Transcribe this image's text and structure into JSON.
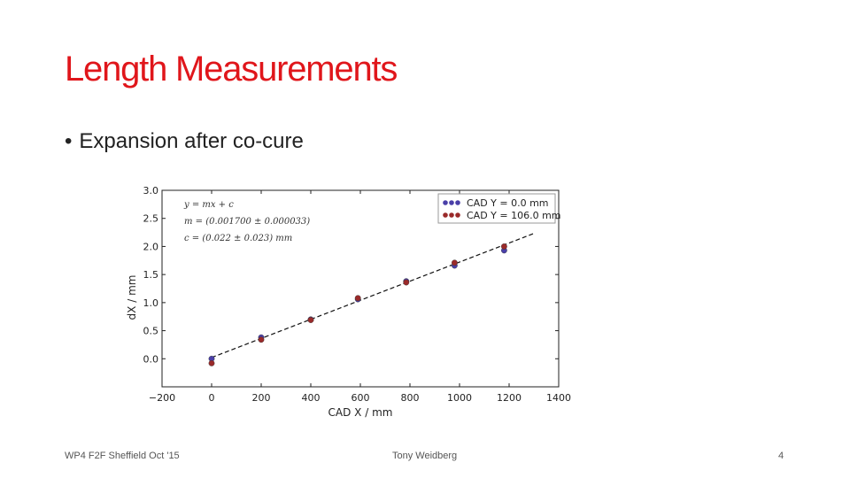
{
  "slide": {
    "title": "Length Measurements",
    "bullet": "Expansion after co-cure",
    "bullet_symbol": "•",
    "footer_left": "WP4 F2F Sheffield Oct '15",
    "footer_center": "Tony Weidberg",
    "footer_right": "4",
    "title_color": "#e0161b"
  },
  "chart_data": {
    "type": "scatter",
    "xlabel": "CAD X / mm",
    "ylabel": "dX / mm",
    "xlim": [
      -200,
      1400
    ],
    "ylim": [
      -0.5,
      3.0
    ],
    "xticks": [
      -200,
      0,
      200,
      400,
      600,
      800,
      1000,
      1200,
      1400
    ],
    "xtick_labels": [
      "−200",
      "0",
      "200",
      "400",
      "600",
      "800",
      "1000",
      "1200",
      "1400"
    ],
    "yticks": [
      0.0,
      0.5,
      1.0,
      1.5,
      2.0,
      2.5,
      3.0
    ],
    "ytick_labels": [
      "0.0",
      "0.5",
      "1.0",
      "1.5",
      "2.0",
      "2.5",
      "3.0"
    ],
    "grid": false,
    "legend": "top-right",
    "annotations": [
      "y = mx + c",
      "m = (0.001700 ± 0.000033)",
      "c = (0.022 ± 0.023) mm"
    ],
    "fit": {
      "m": 0.0017,
      "c": 0.022,
      "x_range": [
        0,
        1300
      ],
      "style": "dashed",
      "color": "#111111"
    },
    "series": [
      {
        "name": "CAD Y = 0.0 mm",
        "color": "#4a3fa8",
        "x": [
          0,
          200,
          400,
          590,
          785,
          980,
          1180
        ],
        "y": [
          0.0,
          0.38,
          0.7,
          1.06,
          1.38,
          1.66,
          1.93
        ]
      },
      {
        "name": "CAD Y = 106.0 mm",
        "color": "#9a2a2a",
        "x": [
          0,
          200,
          400,
          590,
          785,
          980,
          1180
        ],
        "y": [
          -0.08,
          0.34,
          0.69,
          1.08,
          1.36,
          1.71,
          2.0
        ]
      }
    ]
  }
}
